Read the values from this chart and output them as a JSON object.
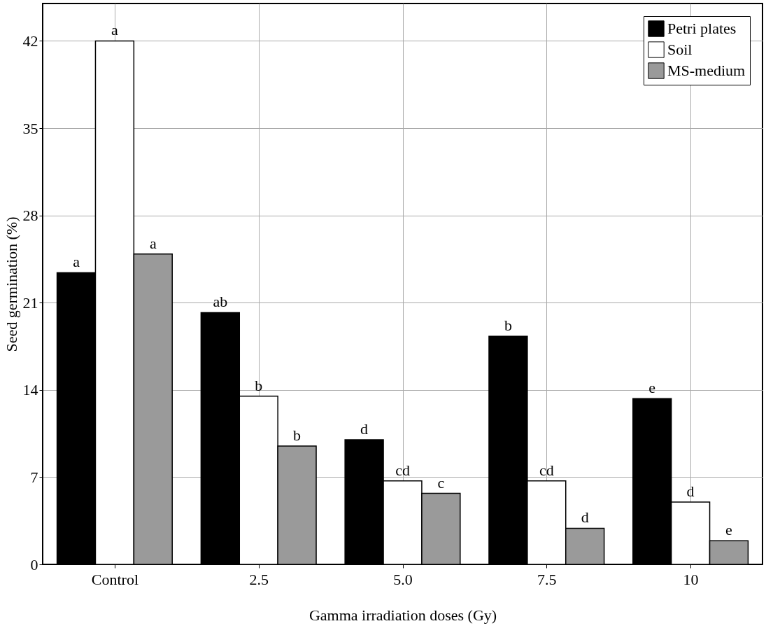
{
  "chart_data": {
    "type": "bar",
    "xlabel": "Gamma irradiation doses (Gy)",
    "ylabel": "Seed germination (%)",
    "categories": [
      "Control",
      "2.5",
      "5.0",
      "7.5",
      "10"
    ],
    "series": [
      {
        "name": "Petri plates",
        "color": "#000000",
        "values": [
          23.4,
          20.2,
          10.0,
          18.3,
          13.3
        ],
        "value_labels": [
          "a",
          "ab",
          "d",
          "b",
          "e"
        ]
      },
      {
        "name": "Soil",
        "color": "#ffffff",
        "values": [
          42.0,
          13.5,
          6.7,
          6.7,
          5.0
        ],
        "value_labels": [
          "a",
          "b",
          "cd",
          "cd",
          "d"
        ]
      },
      {
        "name": "MS-medium",
        "color": "#9a9a9a",
        "values": [
          24.9,
          9.5,
          5.7,
          2.9,
          1.9
        ],
        "value_labels": [
          "a",
          "b",
          "c",
          "d",
          "e"
        ]
      }
    ],
    "ylim": [
      0,
      45
    ],
    "yticks": [
      0,
      7,
      14,
      21,
      28,
      35,
      42
    ],
    "grid": true,
    "legend": "top right"
  }
}
